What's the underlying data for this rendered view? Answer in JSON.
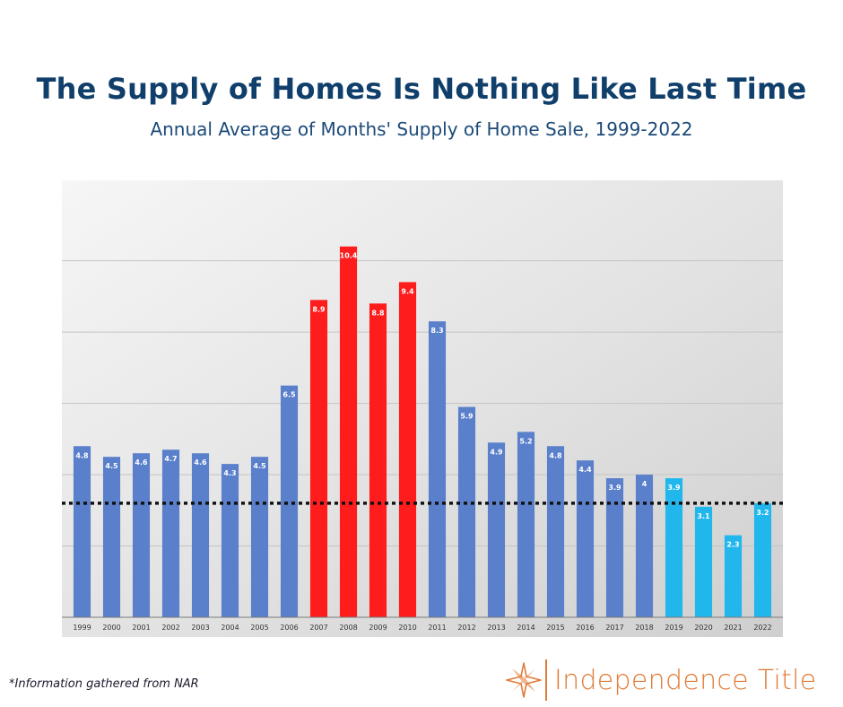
{
  "header": {
    "title": "The Supply of Homes Is Nothing Like Last Time",
    "subtitle": "Annual Average of Months' Supply of Home Sale, 1999-2022"
  },
  "footer": {
    "note": "*Information gathered from NAR",
    "brand": "Independence Title",
    "brand_icon": "star-icon"
  },
  "colors": {
    "normal": "#5a7fcb",
    "crisis": "#fe1c1c",
    "recent": "#22b7ec",
    "brand": "#e07a36",
    "title": "#113f6b"
  },
  "chart_data": {
    "type": "bar",
    "title": "",
    "xlabel": "",
    "ylabel": "",
    "ylim": [
      0,
      11.5
    ],
    "grid": true,
    "categories": [
      "1999",
      "2000",
      "2001",
      "2002",
      "2003",
      "2004",
      "2005",
      "2006",
      "2007",
      "2008",
      "2009",
      "2010",
      "2011",
      "2012",
      "2013",
      "2014",
      "2015",
      "2016",
      "2017",
      "2018",
      "2019",
      "2020",
      "2021",
      "2022"
    ],
    "series": [
      {
        "values": [
          4.8,
          4.5,
          4.6,
          4.7,
          4.6,
          4.3,
          4.5,
          6.5,
          8.9,
          10.4,
          8.8,
          9.4,
          8.3,
          5.9,
          4.9,
          5.2,
          4.8,
          4.4,
          3.9,
          4,
          3.9,
          3.1,
          2.3,
          3.2
        ],
        "labels": [
          "4.8",
          "4.5",
          "4.6",
          "4.7",
          "4.6",
          "4.3",
          "4.5",
          "6.5",
          "8.9",
          "10.4",
          "8.8",
          "9.4",
          "8.3",
          "5.9",
          "4.9",
          "5.2",
          "4.8",
          "4.4",
          "3.9",
          "4",
          "3.9",
          "3.1",
          "2.3",
          "3.2"
        ],
        "groups": [
          "normal",
          "normal",
          "normal",
          "normal",
          "normal",
          "normal",
          "normal",
          "normal",
          "crisis",
          "crisis",
          "crisis",
          "crisis",
          "normal",
          "normal",
          "normal",
          "normal",
          "normal",
          "normal",
          "normal",
          "normal",
          "recent",
          "recent",
          "recent",
          "recent"
        ]
      }
    ],
    "reference_line": {
      "y": 3.2,
      "style": "dotted"
    }
  }
}
